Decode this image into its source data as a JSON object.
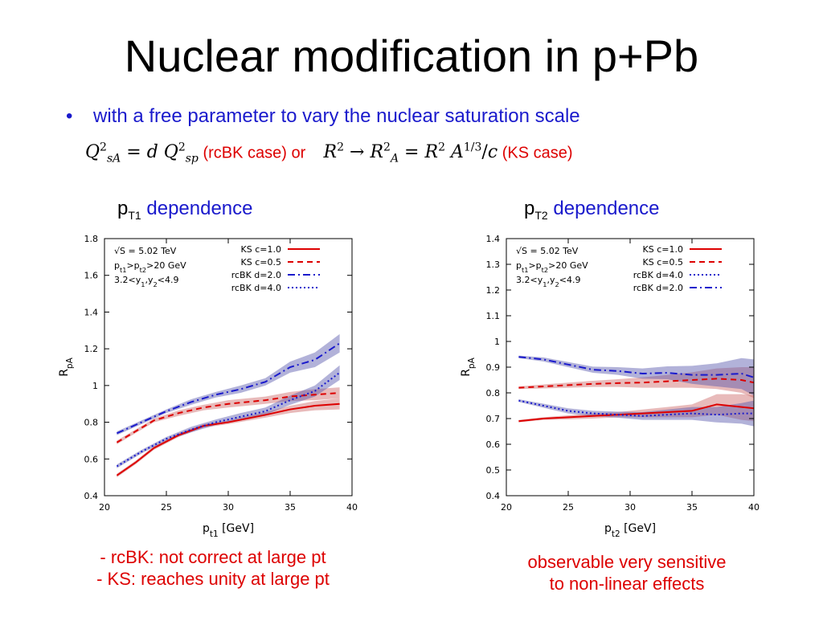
{
  "slide": {
    "title": "Nuclear modification in p+Pb",
    "bullet": "with a free parameter to vary the nuclear saturation scale",
    "rcbk_case": "(rcBK case) or",
    "ks_case": "(KS case)",
    "left_heading": {
      "pt": "p",
      "sub": "T1",
      "dep": "dependence"
    },
    "right_heading": {
      "pt": "p",
      "sub": "T2",
      "dep": "dependence"
    },
    "left_note": [
      "- rcBK: not correct at large pt",
      "- KS: reaches unity at large pt"
    ],
    "right_note": [
      "observable very sensitive",
      "to non-linear effects"
    ]
  },
  "colors": {
    "red": "#dd0000",
    "blue": "#1a1acc",
    "band_red": "#cc6666",
    "band_blue": "#5555aa"
  },
  "chart_data": [
    {
      "type": "line",
      "xlabel": "p_t1 [GeV]",
      "ylabel": "R_pA",
      "xlim": [
        20,
        40
      ],
      "ylim": [
        0.4,
        1.8
      ],
      "xticks": [
        20,
        25,
        30,
        35,
        40
      ],
      "yticks": [
        0.4,
        0.6,
        0.8,
        1,
        1.2,
        1.4,
        1.6,
        1.8
      ],
      "ytick_labels": [
        "0.4",
        "0.6",
        "0.8",
        "1",
        "1.2",
        "1.4",
        "1.6",
        "1.8"
      ],
      "info": [
        "√S = 5.02 TeV",
        "p_t1>p_t2>20 GeV",
        "3.2<y_1,y_2<4.9"
      ],
      "legend_position": "top-right",
      "series": [
        {
          "name": "KS c=1.0",
          "color": "red",
          "style": "solid",
          "x": [
            21,
            22.5,
            24,
            26,
            28,
            30,
            33,
            35,
            37,
            39
          ],
          "y": [
            0.51,
            0.58,
            0.66,
            0.73,
            0.78,
            0.8,
            0.84,
            0.87,
            0.89,
            0.9
          ],
          "band": [
            0.01,
            0.01,
            0.01,
            0.01,
            0.01,
            0.01,
            0.015,
            0.02,
            0.025,
            0.03
          ]
        },
        {
          "name": "KS c=0.5",
          "color": "red",
          "style": "dashed",
          "x": [
            21,
            22.5,
            24,
            26,
            28,
            30,
            33,
            35,
            37,
            39
          ],
          "y": [
            0.69,
            0.75,
            0.81,
            0.85,
            0.88,
            0.9,
            0.92,
            0.94,
            0.95,
            0.96
          ],
          "band": [
            0.01,
            0.01,
            0.01,
            0.015,
            0.015,
            0.02,
            0.02,
            0.025,
            0.03,
            0.03
          ]
        },
        {
          "name": "rcBK d=2.0",
          "color": "blue",
          "style": "dashdot",
          "x": [
            21,
            23,
            25,
            27,
            29,
            31,
            33,
            35,
            37,
            39
          ],
          "y": [
            0.74,
            0.8,
            0.86,
            0.91,
            0.95,
            0.98,
            1.02,
            1.1,
            1.14,
            1.23
          ],
          "band": [
            0.01,
            0.01,
            0.01,
            0.015,
            0.015,
            0.02,
            0.02,
            0.03,
            0.04,
            0.05
          ]
        },
        {
          "name": "rcBK d=4.0",
          "color": "blue",
          "style": "dotted",
          "x": [
            21,
            23,
            25,
            27,
            29,
            31,
            33,
            35,
            37,
            39
          ],
          "y": [
            0.56,
            0.64,
            0.71,
            0.76,
            0.8,
            0.83,
            0.86,
            0.92,
            0.97,
            1.07
          ],
          "band": [
            0.01,
            0.01,
            0.01,
            0.015,
            0.015,
            0.02,
            0.02,
            0.025,
            0.03,
            0.04
          ]
        }
      ]
    },
    {
      "type": "line",
      "xlabel": "p_t2 [GeV]",
      "ylabel": "R_pA",
      "xlim": [
        20,
        40
      ],
      "ylim": [
        0.4,
        1.4
      ],
      "xticks": [
        20,
        25,
        30,
        35,
        40
      ],
      "yticks": [
        0.4,
        0.5,
        0.6,
        0.7,
        0.8,
        0.9,
        1,
        1.1,
        1.2,
        1.3,
        1.4
      ],
      "ytick_labels": [
        "0.4",
        "0.5",
        "0.6",
        "0.7",
        "0.8",
        "0.9",
        "1",
        "1.1",
        "1.2",
        "1.3",
        "1.4"
      ],
      "info": [
        "√S = 5.02 TeV",
        "p_t1>p_t2>20 GeV",
        "3.2<y_1,y_2<4.9"
      ],
      "legend_position": "top-right",
      "series": [
        {
          "name": "KS c=1.0",
          "color": "red",
          "style": "solid",
          "x": [
            21,
            23,
            25,
            27,
            29,
            31,
            33,
            35,
            37,
            39,
            40
          ],
          "y": [
            0.69,
            0.7,
            0.705,
            0.71,
            0.715,
            0.72,
            0.725,
            0.73,
            0.755,
            0.745,
            0.74
          ],
          "band": [
            0.005,
            0.005,
            0.008,
            0.01,
            0.01,
            0.015,
            0.02,
            0.025,
            0.04,
            0.05,
            0.05
          ]
        },
        {
          "name": "KS c=0.5",
          "color": "red",
          "style": "dashed",
          "x": [
            21,
            23,
            25,
            27,
            29,
            31,
            33,
            35,
            37,
            39,
            40
          ],
          "y": [
            0.82,
            0.825,
            0.83,
            0.835,
            0.838,
            0.84,
            0.845,
            0.85,
            0.855,
            0.85,
            0.84
          ],
          "band": [
            0.005,
            0.008,
            0.01,
            0.012,
            0.015,
            0.02,
            0.025,
            0.03,
            0.04,
            0.05,
            0.06
          ]
        },
        {
          "name": "rcBK d=4.0",
          "color": "blue",
          "style": "dotted",
          "x": [
            21,
            23,
            25,
            27,
            29,
            31,
            33,
            35,
            37,
            39,
            40
          ],
          "y": [
            0.77,
            0.75,
            0.73,
            0.72,
            0.715,
            0.71,
            0.715,
            0.72,
            0.715,
            0.72,
            0.72
          ],
          "band": [
            0.005,
            0.008,
            0.01,
            0.01,
            0.012,
            0.015,
            0.02,
            0.025,
            0.03,
            0.04,
            0.05
          ]
        },
        {
          "name": "rcBK d=2.0",
          "color": "blue",
          "style": "dashdot",
          "x": [
            21,
            23,
            25,
            27,
            29,
            31,
            33,
            35,
            37,
            39,
            40
          ],
          "y": [
            0.94,
            0.93,
            0.91,
            0.89,
            0.885,
            0.875,
            0.878,
            0.87,
            0.87,
            0.875,
            0.86
          ],
          "band": [
            0.005,
            0.008,
            0.01,
            0.012,
            0.015,
            0.02,
            0.025,
            0.035,
            0.045,
            0.06,
            0.07
          ]
        }
      ]
    }
  ]
}
